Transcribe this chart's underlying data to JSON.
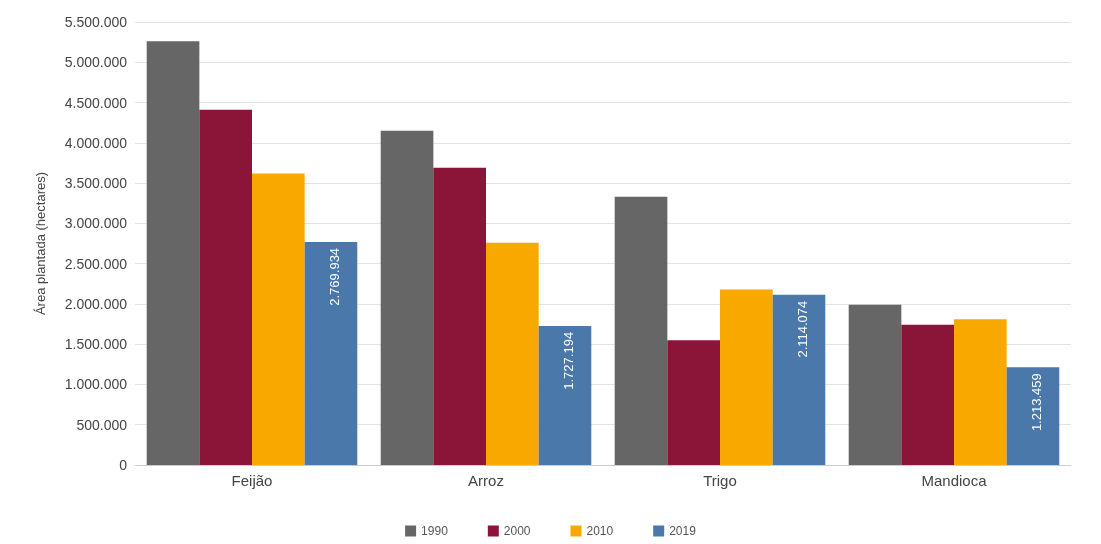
{
  "chart_data": {
    "type": "bar",
    "ylabel": "Área plantada (hectares)",
    "categories": [
      "Feijão",
      "Arroz",
      "Trigo",
      "Mandioca"
    ],
    "series": [
      {
        "name": "1990",
        "color": "#666666",
        "values": [
          5260000,
          4150000,
          3330000,
          1990000
        ]
      },
      {
        "name": "2000",
        "color": "#8b1538",
        "values": [
          4410000,
          3690000,
          1550000,
          1740000
        ]
      },
      {
        "name": "2010",
        "color": "#f9a800",
        "values": [
          3620000,
          2760000,
          2180000,
          1810000
        ]
      },
      {
        "name": "2019",
        "color": "#4a78aa",
        "values": [
          2769934,
          1727194,
          2114074,
          1213459
        ],
        "value_labels": [
          "2.769.934",
          "1.727.194",
          "2.114.074",
          "1.213.459"
        ]
      }
    ],
    "ylim": [
      0,
      5500000
    ],
    "yticks": [
      0,
      {
        "value": 500000,
        "label": "500.000"
      },
      {
        "value": 1000000,
        "label": "1.000.000"
      },
      {
        "value": 1500000,
        "label": "1.500.000"
      },
      {
        "value": 2000000,
        "label": "2.000.000"
      },
      {
        "value": 2500000,
        "label": "2.500.000"
      },
      {
        "value": 3000000,
        "label": "3.000.000"
      },
      {
        "value": 3500000,
        "label": "3.500.000"
      },
      {
        "value": 4000000,
        "label": "4.000.000"
      },
      {
        "value": 4500000,
        "label": "4.500.000"
      },
      {
        "value": 5000000,
        "label": "5.000.000"
      },
      {
        "value": 5500000,
        "label": "5.500.000"
      }
    ],
    "grid": "y",
    "legend": "bottom"
  }
}
